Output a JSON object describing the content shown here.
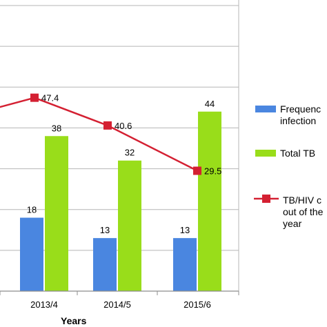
{
  "chart_data": {
    "type": "bar",
    "xlabel": "Years",
    "categories": [
      "2013/4",
      "2014/5",
      "2015/6"
    ],
    "ylim": [
      0,
      70
    ],
    "grid": true,
    "legend_position": "right",
    "series": [
      {
        "name": "Frequency of TB/HIV co-infection",
        "kind": "bar",
        "color": "#4a86e0",
        "values": [
          18,
          13,
          13
        ],
        "labels": [
          "18",
          "13",
          "13"
        ]
      },
      {
        "name": "Total TB",
        "kind": "bar",
        "color": "#99dd1a",
        "values": [
          38,
          32,
          44
        ],
        "labels": [
          "38",
          "32",
          "44"
        ]
      },
      {
        "name": "TB/HIV co-infection out of the total per year",
        "kind": "line",
        "color": "#d42032",
        "values": [
          47.4,
          40.6,
          29.5
        ],
        "labels": [
          "47.4",
          "40.6",
          "29.5"
        ]
      }
    ],
    "legend_entries": [
      [
        "Frequenc",
        "infection"
      ],
      [
        "Total TB"
      ],
      [
        "TB/HIV c",
        "out of the",
        "year"
      ]
    ]
  }
}
